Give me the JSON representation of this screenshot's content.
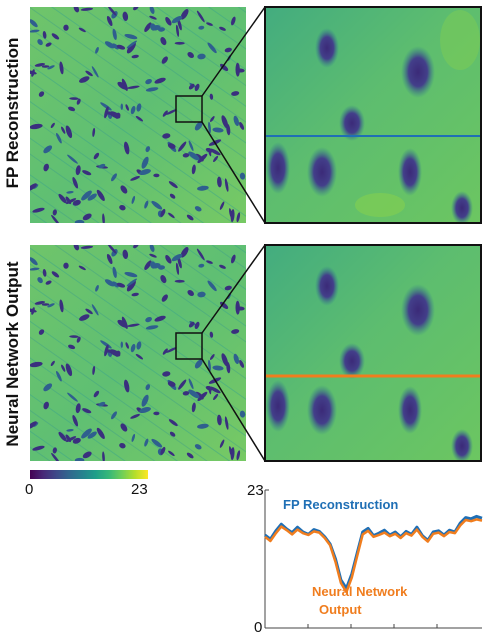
{
  "row_labels": {
    "top": "FP Reconstruction",
    "bottom": "Neural Network Output"
  },
  "colorbar": {
    "min_label": "0",
    "max_label": "23",
    "colormap": "viridis"
  },
  "line_colors": {
    "fp": "#1f6fb5",
    "nn": "#f07d1e"
  },
  "chart_data": {
    "type": "line",
    "title": "",
    "xlabel": "",
    "ylabel": "",
    "ylim": [
      0,
      23
    ],
    "ytick_labels": [
      "0",
      "23"
    ],
    "annotations": [
      "FP Reconstruction",
      "Neural Network",
      "Output"
    ],
    "series": [
      {
        "name": "FP Reconstruction",
        "color": "#1f6fb5",
        "x": [
          0,
          1,
          2,
          3,
          4,
          5,
          6,
          7,
          8,
          9,
          10,
          11,
          12,
          13,
          14,
          15,
          16,
          17,
          18,
          19,
          20,
          21,
          22,
          23,
          24,
          25,
          26,
          27,
          28,
          29,
          30,
          31,
          32,
          33,
          34,
          35,
          36,
          37,
          38,
          39,
          40
        ],
        "values": [
          15.5,
          14.8,
          16.2,
          17.3,
          16.5,
          15.9,
          16.8,
          16.0,
          15.6,
          16.4,
          16.1,
          15.2,
          14.0,
          11.5,
          8.0,
          6.6,
          9.0,
          12.5,
          16.0,
          16.6,
          15.4,
          15.8,
          16.3,
          15.5,
          16.0,
          15.2,
          16.1,
          15.6,
          16.8,
          15.4,
          14.6,
          16.0,
          16.2,
          15.5,
          16.3,
          16.0,
          17.5,
          18.4,
          18.2,
          18.6,
          18.3
        ]
      },
      {
        "name": "Neural Network Output",
        "color": "#f07d1e",
        "x": [
          0,
          1,
          2,
          3,
          4,
          5,
          6,
          7,
          8,
          9,
          10,
          11,
          12,
          13,
          14,
          15,
          16,
          17,
          18,
          19,
          20,
          21,
          22,
          23,
          24,
          25,
          26,
          27,
          28,
          29,
          30,
          31,
          32,
          33,
          34,
          35,
          36,
          37,
          38,
          39,
          40
        ],
        "values": [
          15.2,
          14.5,
          15.8,
          16.9,
          16.3,
          15.6,
          16.4,
          15.8,
          15.5,
          16.1,
          15.9,
          15.0,
          13.8,
          11.0,
          7.5,
          6.0,
          8.4,
          12.0,
          15.6,
          16.2,
          15.2,
          15.5,
          15.9,
          15.3,
          15.7,
          15.0,
          15.8,
          15.4,
          16.4,
          15.2,
          14.4,
          15.7,
          15.9,
          15.3,
          16.0,
          15.8,
          17.1,
          18.0,
          17.8,
          18.1,
          17.9
        ]
      }
    ]
  }
}
